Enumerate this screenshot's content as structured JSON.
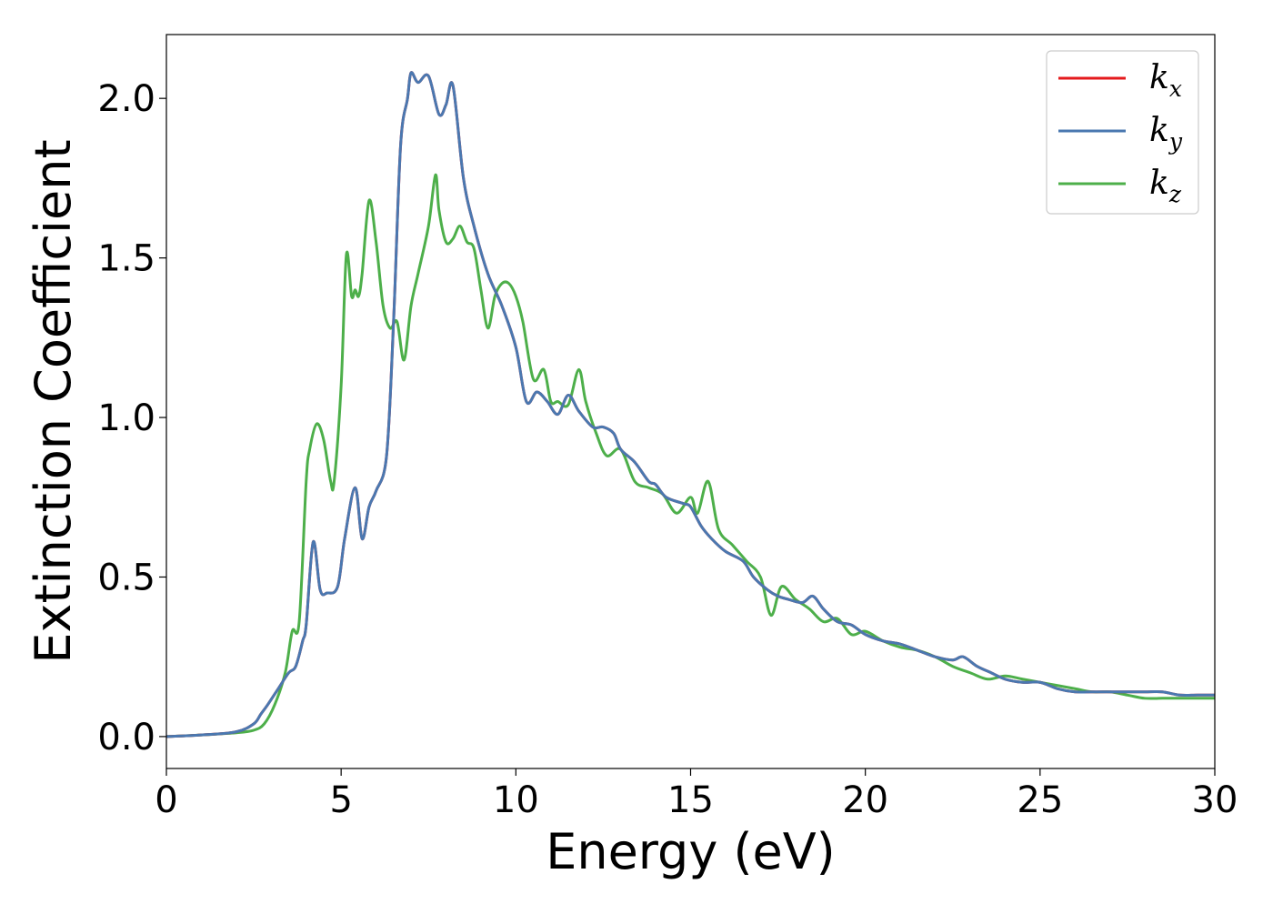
{
  "chart_data": {
    "type": "line",
    "title": "",
    "xlabel": "Energy (eV)",
    "ylabel": "Extinction Coefficient",
    "xlim": [
      0,
      30
    ],
    "ylim": [
      -0.1,
      2.2
    ],
    "xticks": [
      0,
      5,
      10,
      15,
      20,
      25,
      30
    ],
    "xtick_labels": [
      "0",
      "5",
      "10",
      "15",
      "20",
      "25",
      "30"
    ],
    "yticks": [
      0.0,
      0.5,
      1.0,
      1.5,
      2.0
    ],
    "ytick_labels": [
      "0.0",
      "0.5",
      "1.0",
      "1.5",
      "2.0"
    ],
    "grid": false,
    "legend_position": "top-right",
    "series": [
      {
        "name": "k_x",
        "legend_base": "k",
        "legend_sub": "x",
        "color": "#e41a1c",
        "x": [
          0,
          1,
          2,
          2.5,
          2.7,
          2.9,
          3.2,
          3.5,
          3.7,
          3.9,
          4.0,
          4.2,
          4.4,
          4.6,
          4.9,
          5.1,
          5.4,
          5.6,
          5.8,
          6.0,
          6.3,
          6.5,
          6.7,
          6.9,
          7.0,
          7.2,
          7.5,
          7.8,
          8.0,
          8.2,
          8.5,
          8.8,
          9.2,
          9.6,
          10.0,
          10.3,
          10.6,
          10.9,
          11.2,
          11.5,
          11.8,
          12.2,
          12.5,
          12.8,
          13.0,
          13.4,
          13.8,
          14.0,
          14.3,
          14.8,
          15.0,
          15.3,
          15.6,
          16.0,
          16.5,
          16.8,
          17.2,
          17.5,
          17.8,
          18.2,
          18.5,
          18.8,
          19.2,
          19.6,
          20.0,
          20.5,
          21.0,
          21.5,
          22.0,
          22.5,
          22.8,
          23.2,
          23.6,
          24.0,
          24.5,
          25.0,
          25.5,
          26.0,
          26.5,
          27.0,
          27.5,
          28.0,
          28.5,
          29.0,
          29.5,
          30.0
        ],
        "y": [
          0.0,
          0.005,
          0.015,
          0.04,
          0.07,
          0.1,
          0.15,
          0.2,
          0.22,
          0.3,
          0.35,
          0.61,
          0.46,
          0.45,
          0.47,
          0.62,
          0.78,
          0.62,
          0.72,
          0.77,
          0.88,
          1.3,
          1.85,
          2.0,
          2.08,
          2.05,
          2.07,
          1.95,
          1.98,
          2.04,
          1.75,
          1.6,
          1.45,
          1.35,
          1.22,
          1.05,
          1.08,
          1.05,
          1.01,
          1.07,
          1.02,
          0.97,
          0.97,
          0.95,
          0.9,
          0.86,
          0.8,
          0.79,
          0.75,
          0.73,
          0.72,
          0.66,
          0.62,
          0.58,
          0.55,
          0.5,
          0.46,
          0.44,
          0.43,
          0.42,
          0.44,
          0.4,
          0.36,
          0.35,
          0.32,
          0.3,
          0.29,
          0.27,
          0.25,
          0.24,
          0.25,
          0.22,
          0.2,
          0.18,
          0.17,
          0.17,
          0.15,
          0.14,
          0.14,
          0.14,
          0.14,
          0.14,
          0.14,
          0.13,
          0.13,
          0.13
        ]
      },
      {
        "name": "k_y",
        "legend_base": "k",
        "legend_sub": "y",
        "color": "#4a78b0",
        "x": [
          0,
          1,
          2,
          2.5,
          2.7,
          2.9,
          3.2,
          3.5,
          3.7,
          3.9,
          4.0,
          4.2,
          4.4,
          4.6,
          4.9,
          5.1,
          5.4,
          5.6,
          5.8,
          6.0,
          6.3,
          6.5,
          6.7,
          6.9,
          7.0,
          7.2,
          7.5,
          7.8,
          8.0,
          8.2,
          8.5,
          8.8,
          9.2,
          9.6,
          10.0,
          10.3,
          10.6,
          10.9,
          11.2,
          11.5,
          11.8,
          12.2,
          12.5,
          12.8,
          13.0,
          13.4,
          13.8,
          14.0,
          14.3,
          14.8,
          15.0,
          15.3,
          15.6,
          16.0,
          16.5,
          16.8,
          17.2,
          17.5,
          17.8,
          18.2,
          18.5,
          18.8,
          19.2,
          19.6,
          20.0,
          20.5,
          21.0,
          21.5,
          22.0,
          22.5,
          22.8,
          23.2,
          23.6,
          24.0,
          24.5,
          25.0,
          25.5,
          26.0,
          26.5,
          27.0,
          27.5,
          28.0,
          28.5,
          29.0,
          29.5,
          30.0
        ],
        "y": [
          0.0,
          0.005,
          0.015,
          0.04,
          0.07,
          0.1,
          0.15,
          0.2,
          0.22,
          0.3,
          0.35,
          0.61,
          0.46,
          0.45,
          0.47,
          0.62,
          0.78,
          0.62,
          0.72,
          0.77,
          0.88,
          1.3,
          1.85,
          2.0,
          2.08,
          2.05,
          2.07,
          1.95,
          1.98,
          2.04,
          1.75,
          1.6,
          1.45,
          1.35,
          1.22,
          1.05,
          1.08,
          1.05,
          1.01,
          1.07,
          1.02,
          0.97,
          0.97,
          0.95,
          0.9,
          0.86,
          0.8,
          0.79,
          0.75,
          0.73,
          0.72,
          0.66,
          0.62,
          0.58,
          0.55,
          0.5,
          0.46,
          0.44,
          0.43,
          0.42,
          0.44,
          0.4,
          0.36,
          0.35,
          0.32,
          0.3,
          0.29,
          0.27,
          0.25,
          0.24,
          0.25,
          0.22,
          0.2,
          0.18,
          0.17,
          0.17,
          0.15,
          0.14,
          0.14,
          0.14,
          0.14,
          0.14,
          0.14,
          0.13,
          0.13,
          0.13
        ]
      },
      {
        "name": "k_z",
        "legend_base": "k",
        "legend_sub": "z",
        "color": "#4daf4a",
        "x": [
          0,
          1,
          2,
          2.5,
          2.8,
          3.1,
          3.4,
          3.6,
          3.8,
          4.0,
          4.1,
          4.3,
          4.5,
          4.7,
          4.8,
          5.0,
          5.15,
          5.3,
          5.4,
          5.5,
          5.6,
          5.8,
          6.0,
          6.2,
          6.4,
          6.6,
          6.8,
          7.0,
          7.2,
          7.5,
          7.7,
          7.8,
          8.0,
          8.2,
          8.4,
          8.6,
          8.8,
          9.0,
          9.2,
          9.4,
          9.6,
          9.8,
          10.0,
          10.2,
          10.5,
          10.8,
          11.0,
          11.2,
          11.5,
          11.8,
          12.0,
          12.3,
          12.6,
          13.0,
          13.4,
          13.8,
          14.2,
          14.6,
          15.0,
          15.2,
          15.5,
          15.8,
          16.2,
          16.6,
          17.0,
          17.3,
          17.6,
          18.0,
          18.4,
          18.8,
          19.2,
          19.6,
          20.0,
          20.5,
          21.0,
          21.5,
          22.0,
          22.5,
          23.0,
          23.5,
          24.0,
          24.5,
          25.0,
          25.5,
          26.0,
          26.5,
          27.0,
          27.5,
          28.0,
          28.5,
          29.0,
          29.5,
          30.0
        ],
        "y": [
          0.0,
          0.005,
          0.012,
          0.02,
          0.04,
          0.1,
          0.2,
          0.33,
          0.36,
          0.8,
          0.9,
          0.98,
          0.93,
          0.8,
          0.8,
          1.1,
          1.51,
          1.38,
          1.4,
          1.38,
          1.45,
          1.68,
          1.55,
          1.35,
          1.28,
          1.3,
          1.18,
          1.35,
          1.45,
          1.6,
          1.76,
          1.65,
          1.55,
          1.56,
          1.6,
          1.55,
          1.53,
          1.4,
          1.28,
          1.38,
          1.42,
          1.42,
          1.38,
          1.3,
          1.12,
          1.15,
          1.05,
          1.05,
          1.04,
          1.15,
          1.05,
          0.95,
          0.88,
          0.9,
          0.8,
          0.78,
          0.76,
          0.7,
          0.75,
          0.7,
          0.8,
          0.65,
          0.6,
          0.55,
          0.5,
          0.38,
          0.47,
          0.43,
          0.4,
          0.36,
          0.37,
          0.32,
          0.33,
          0.3,
          0.28,
          0.27,
          0.25,
          0.22,
          0.2,
          0.18,
          0.19,
          0.18,
          0.17,
          0.16,
          0.15,
          0.14,
          0.14,
          0.13,
          0.12,
          0.12,
          0.12,
          0.12,
          0.12
        ]
      }
    ]
  }
}
